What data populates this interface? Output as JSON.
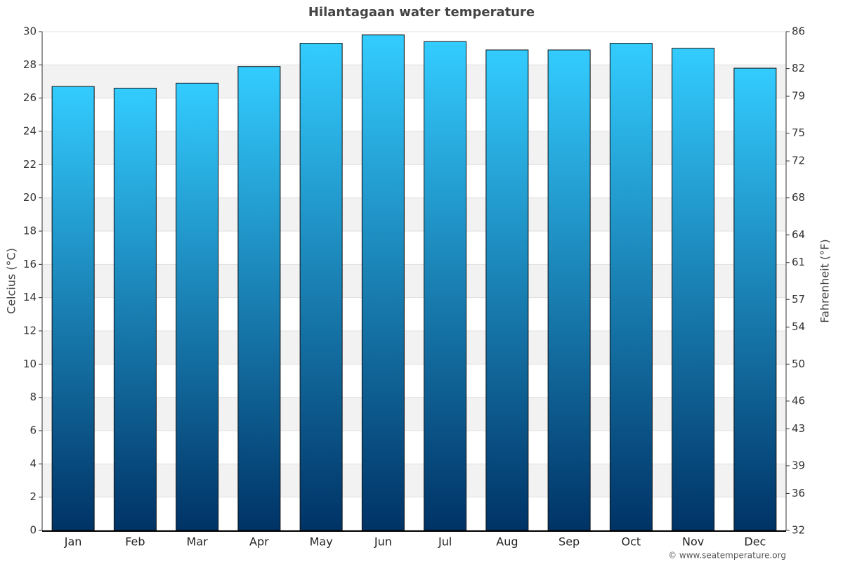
{
  "chart_data": {
    "type": "bar",
    "title": "Hilantagaan water temperature",
    "ylabel": "Celcius (°C)",
    "y2label": "Fahrenheit (°F)",
    "categories": [
      "Jan",
      "Feb",
      "Mar",
      "Apr",
      "May",
      "Jun",
      "Jul",
      "Aug",
      "Sep",
      "Oct",
      "Nov",
      "Dec"
    ],
    "values": [
      26.7,
      26.6,
      26.9,
      27.9,
      29.3,
      29.8,
      29.4,
      28.9,
      28.9,
      29.3,
      29.0,
      27.8
    ],
    "color": [
      "#33ccff",
      "#003366"
    ],
    "ylim": [
      0,
      30
    ],
    "yticks": [
      0,
      2,
      4,
      6,
      8,
      10,
      12,
      14,
      16,
      18,
      20,
      22,
      24,
      26,
      28,
      30
    ],
    "y2lim": [
      32,
      86
    ],
    "y2ticks": [
      32,
      36,
      39,
      43,
      46,
      50,
      54,
      57,
      61,
      64,
      68,
      72,
      75,
      79,
      82,
      86
    ],
    "grid": true,
    "credit": "© www.seatemperature.org"
  }
}
